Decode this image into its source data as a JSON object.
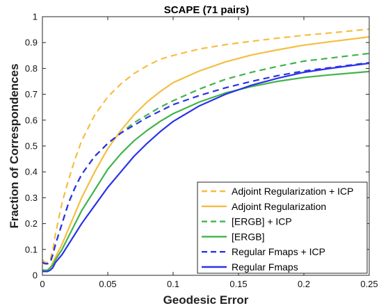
{
  "chart_data": {
    "type": "line",
    "title": "SCAPE (71 pairs)",
    "xlabel": "Geodesic Error",
    "ylabel": "Fraction of Correspondences",
    "xlim": [
      0,
      0.25
    ],
    "ylim": [
      0,
      1
    ],
    "xticks": [
      0,
      0.05,
      0.1,
      0.15,
      0.2,
      0.25
    ],
    "xtick_labels": [
      "0",
      "0.05",
      "0.1",
      "0.15",
      "0.2",
      "0.25"
    ],
    "yticks": [
      0,
      0.1,
      0.2,
      0.3,
      0.4,
      0.5,
      0.6,
      0.7,
      0.8,
      0.9,
      1
    ],
    "ytick_labels": [
      "0",
      "0.1",
      "0.2",
      "0.3",
      "0.4",
      "0.5",
      "0.6",
      "0.7",
      "0.8",
      "0.9",
      "1"
    ],
    "grid": false,
    "legend_position": "bottom-right",
    "series": [
      {
        "name": "Adjoint Regularization + ICP",
        "color": "#f5be41",
        "dash": "dashed",
        "x": [
          0,
          0.002,
          0.004,
          0.006,
          0.008,
          0.01,
          0.015,
          0.02,
          0.025,
          0.03,
          0.04,
          0.05,
          0.06,
          0.07,
          0.08,
          0.09,
          0.1,
          0.12,
          0.14,
          0.16,
          0.18,
          0.2,
          0.22,
          0.25
        ],
        "y": [
          0.06,
          0.05,
          0.05,
          0.06,
          0.1,
          0.16,
          0.28,
          0.37,
          0.45,
          0.52,
          0.62,
          0.69,
          0.74,
          0.78,
          0.81,
          0.835,
          0.85,
          0.875,
          0.892,
          0.905,
          0.917,
          0.928,
          0.937,
          0.952
        ]
      },
      {
        "name": "Adjoint Regularization",
        "color": "#f5be41",
        "dash": "solid",
        "x": [
          0,
          0.002,
          0.004,
          0.006,
          0.008,
          0.01,
          0.015,
          0.02,
          0.025,
          0.03,
          0.04,
          0.05,
          0.06,
          0.07,
          0.08,
          0.09,
          0.1,
          0.12,
          0.14,
          0.16,
          0.18,
          0.2,
          0.22,
          0.25
        ],
        "y": [
          0.02,
          0.02,
          0.02,
          0.03,
          0.05,
          0.07,
          0.12,
          0.18,
          0.24,
          0.3,
          0.4,
          0.49,
          0.56,
          0.62,
          0.67,
          0.71,
          0.745,
          0.79,
          0.825,
          0.852,
          0.872,
          0.89,
          0.903,
          0.922
        ]
      },
      {
        "name": "[ERGB] + ICP",
        "color": "#3fb44a",
        "dash": "dashed",
        "x": [
          0,
          0.002,
          0.004,
          0.006,
          0.008,
          0.01,
          0.015,
          0.02,
          0.025,
          0.03,
          0.04,
          0.05,
          0.06,
          0.07,
          0.08,
          0.09,
          0.1,
          0.12,
          0.14,
          0.16,
          0.18,
          0.2,
          0.22,
          0.25
        ],
        "y": [
          0.05,
          0.045,
          0.045,
          0.05,
          0.08,
          0.12,
          0.2,
          0.28,
          0.34,
          0.39,
          0.46,
          0.51,
          0.55,
          0.59,
          0.62,
          0.65,
          0.675,
          0.72,
          0.758,
          0.785,
          0.808,
          0.828,
          0.84,
          0.858
        ]
      },
      {
        "name": "[ERGB]",
        "color": "#3fb44a",
        "dash": "solid",
        "x": [
          0,
          0.002,
          0.004,
          0.006,
          0.008,
          0.01,
          0.015,
          0.02,
          0.025,
          0.03,
          0.04,
          0.05,
          0.06,
          0.07,
          0.08,
          0.09,
          0.1,
          0.12,
          0.14,
          0.16,
          0.18,
          0.2,
          0.22,
          0.25
        ],
        "y": [
          0.02,
          0.02,
          0.02,
          0.03,
          0.04,
          0.06,
          0.1,
          0.15,
          0.2,
          0.25,
          0.33,
          0.41,
          0.47,
          0.52,
          0.56,
          0.595,
          0.625,
          0.67,
          0.705,
          0.73,
          0.75,
          0.765,
          0.775,
          0.788
        ]
      },
      {
        "name": "Regular Fmaps + ICP",
        "color": "#2a32e8",
        "dash": "dashed",
        "x": [
          0,
          0.002,
          0.004,
          0.006,
          0.008,
          0.01,
          0.015,
          0.02,
          0.025,
          0.03,
          0.04,
          0.05,
          0.06,
          0.07,
          0.08,
          0.09,
          0.1,
          0.12,
          0.14,
          0.16,
          0.18,
          0.2,
          0.22,
          0.25
        ],
        "y": [
          0.05,
          0.045,
          0.045,
          0.05,
          0.08,
          0.12,
          0.2,
          0.28,
          0.34,
          0.39,
          0.46,
          0.51,
          0.55,
          0.58,
          0.61,
          0.635,
          0.66,
          0.695,
          0.725,
          0.75,
          0.772,
          0.79,
          0.803,
          0.822
        ]
      },
      {
        "name": "Regular Fmaps",
        "color": "#2a32e8",
        "dash": "solid",
        "x": [
          0,
          0.002,
          0.004,
          0.006,
          0.008,
          0.01,
          0.015,
          0.02,
          0.025,
          0.03,
          0.04,
          0.05,
          0.06,
          0.07,
          0.08,
          0.09,
          0.1,
          0.12,
          0.14,
          0.16,
          0.18,
          0.2,
          0.22,
          0.25
        ],
        "y": [
          0.015,
          0.015,
          0.015,
          0.02,
          0.03,
          0.05,
          0.08,
          0.12,
          0.16,
          0.2,
          0.27,
          0.34,
          0.4,
          0.46,
          0.51,
          0.555,
          0.595,
          0.655,
          0.7,
          0.735,
          0.762,
          0.785,
          0.8,
          0.82
        ]
      }
    ]
  }
}
